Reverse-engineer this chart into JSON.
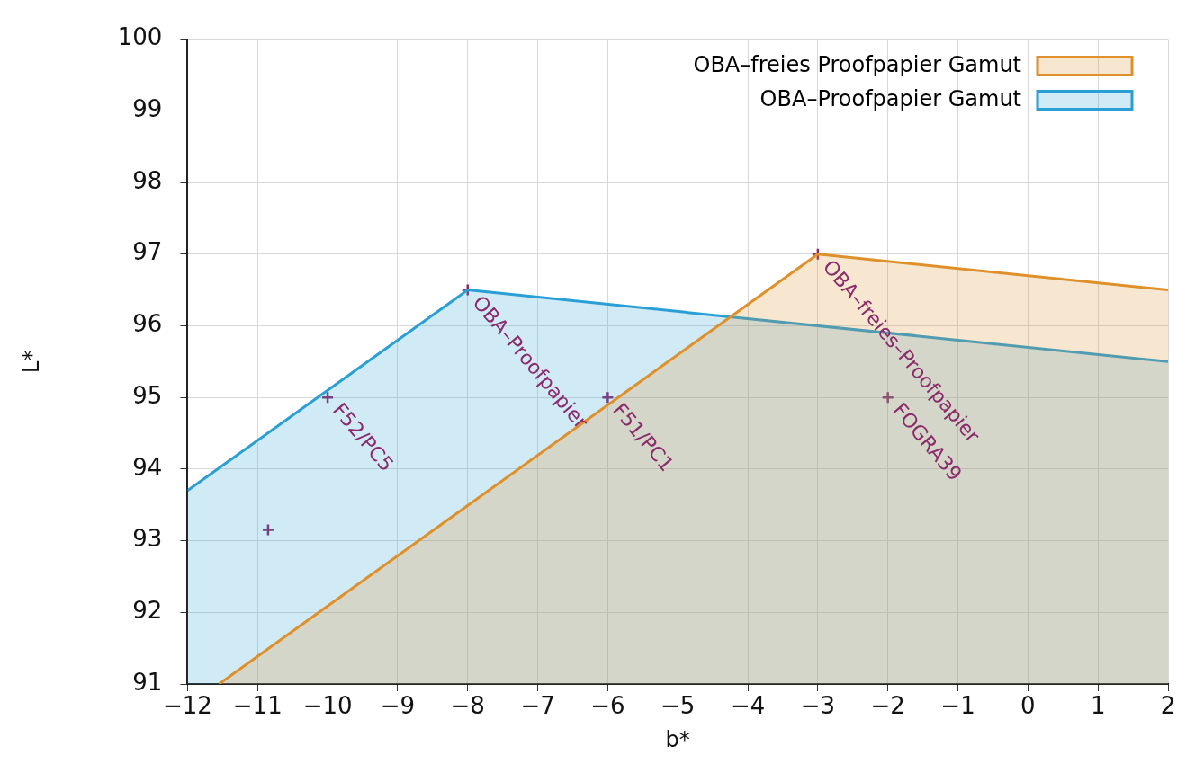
{
  "chart_data": {
    "type": "area",
    "xlabel": "b*",
    "ylabel": "L*",
    "xlim": [
      -12,
      2
    ],
    "xticks": [
      -12,
      -11,
      -10,
      -9,
      -8,
      -7,
      -6,
      -5,
      -4,
      -3,
      -2,
      -1,
      0,
      1,
      2
    ],
    "ylim": [
      91,
      100
    ],
    "yticks": [
      91,
      92,
      93,
      94,
      95,
      96,
      97,
      98,
      99,
      100
    ],
    "grid": true,
    "legend": "top right",
    "series": [
      {
        "name": "OBA–freies Proofpapier Gamut",
        "color": "#e0902a",
        "x": [
          -11.55,
          -3,
          2
        ],
        "values": [
          91,
          97,
          96.5
        ]
      },
      {
        "name": "OBA–Proofpapier Gamut",
        "color": "#2a9fd6",
        "x": [
          -12,
          -8,
          2
        ],
        "values": [
          93.7,
          96.5,
          95.5
        ]
      },
      {
        "type": "scatter",
        "color": "#8b2a6b",
        "marker": "cross",
        "x": [
          -10,
          -10.85,
          -8,
          -6,
          -3,
          -2
        ],
        "values": [
          95,
          93.15,
          96.5,
          95,
          97,
          95
        ]
      }
    ],
    "annotations": [
      {
        "text": "F52/PC5",
        "x": -10,
        "y": 95
      },
      {
        "text": "OBA–Proofpapier",
        "x": -8,
        "y": 96.5
      },
      {
        "text": "F51/PC1",
        "x": -6,
        "y": 95
      },
      {
        "text": "OBA–freies–Proofpapier",
        "x": -3,
        "y": 97
      },
      {
        "text": "FOGRA39",
        "x": -2,
        "y": 95
      }
    ]
  }
}
